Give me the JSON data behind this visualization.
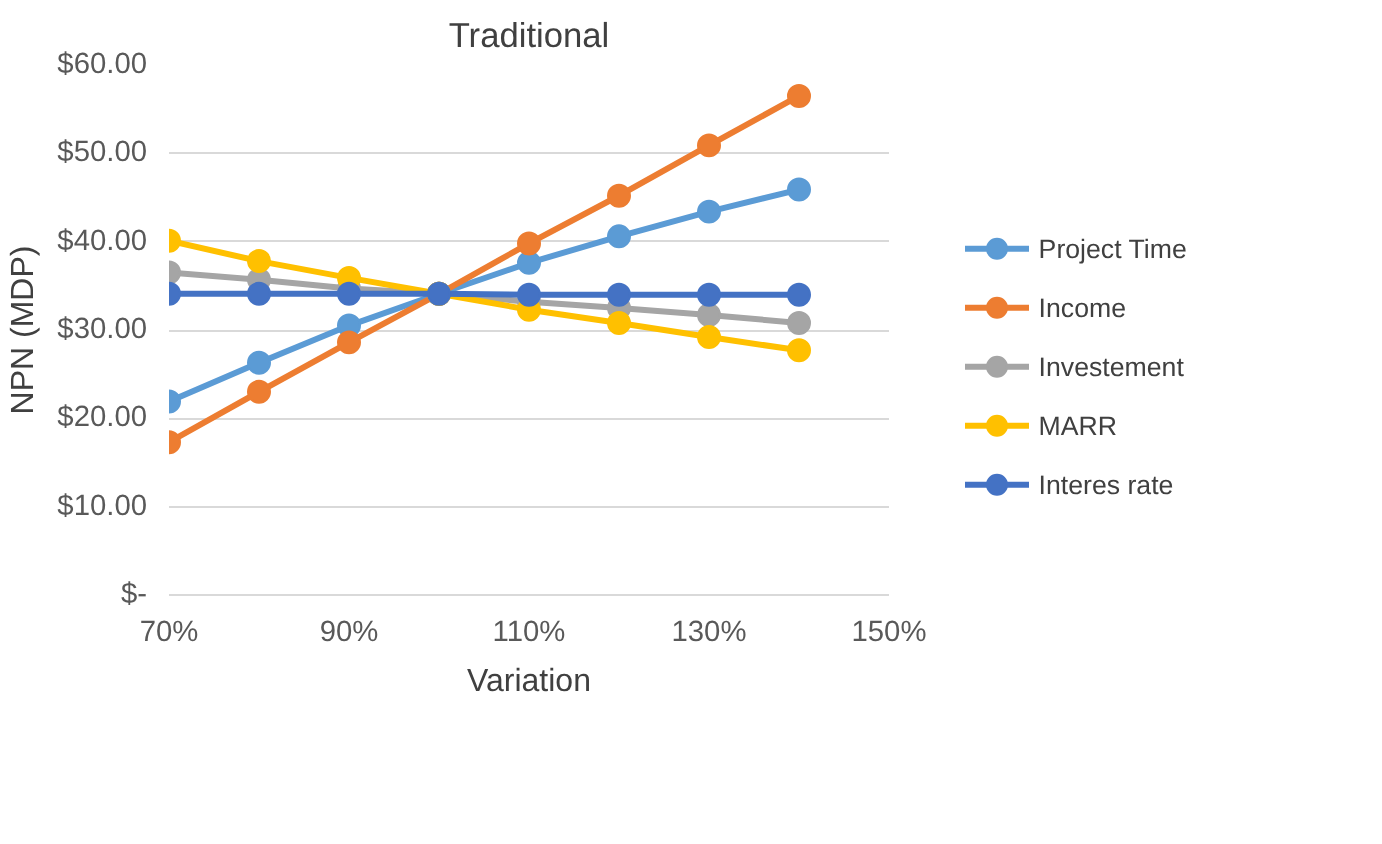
{
  "chart_data": {
    "type": "line",
    "title": "Traditional",
    "xlabel": "Variation",
    "ylabel": "NPN (MDP)",
    "x": [
      70,
      80,
      90,
      100,
      110,
      120,
      130,
      140
    ],
    "xlim": [
      70,
      150
    ],
    "xticks": [
      {
        "value": 70,
        "label": "70%"
      },
      {
        "value": 90,
        "label": "90%"
      },
      {
        "value": 110,
        "label": "110%"
      },
      {
        "value": 130,
        "label": "130%"
      },
      {
        "value": 150,
        "label": "150%"
      }
    ],
    "ylim": [
      0,
      60
    ],
    "yticks": [
      {
        "value": 0,
        "label": "$-"
      },
      {
        "value": 10,
        "label": "$10.00"
      },
      {
        "value": 20,
        "label": "$20.00"
      },
      {
        "value": 30,
        "label": "$30.00"
      },
      {
        "value": 40,
        "label": "$40.00"
      },
      {
        "value": 50,
        "label": "$50.00"
      },
      {
        "value": 60,
        "label": "$60.00"
      }
    ],
    "grid": "y",
    "legend": "right",
    "marker": "circle",
    "line_style": "solid",
    "series": [
      {
        "name": "Project Time",
        "color": "#5b9bd5",
        "values": [
          21.9,
          26.3,
          30.5,
          34.1,
          37.6,
          40.6,
          43.4,
          45.9
        ]
      },
      {
        "name": "Income",
        "color": "#ed7d31",
        "values": [
          17.3,
          23.0,
          28.6,
          34.1,
          39.8,
          45.2,
          50.9,
          56.5
        ]
      },
      {
        "name": "Investement",
        "color": "#a5a5a5",
        "values": [
          36.5,
          35.7,
          34.7,
          34.1,
          33.2,
          32.5,
          31.7,
          30.8
        ]
      },
      {
        "name": "MARR",
        "color": "#ffc000",
        "values": [
          40.1,
          37.8,
          35.9,
          34.1,
          32.3,
          30.8,
          29.2,
          27.7
        ]
      },
      {
        "name": "Interes rate",
        "color": "#4472c4",
        "values": [
          34.1,
          34.1,
          34.1,
          34.1,
          34.0,
          34.0,
          34.0,
          34.0
        ]
      }
    ]
  }
}
